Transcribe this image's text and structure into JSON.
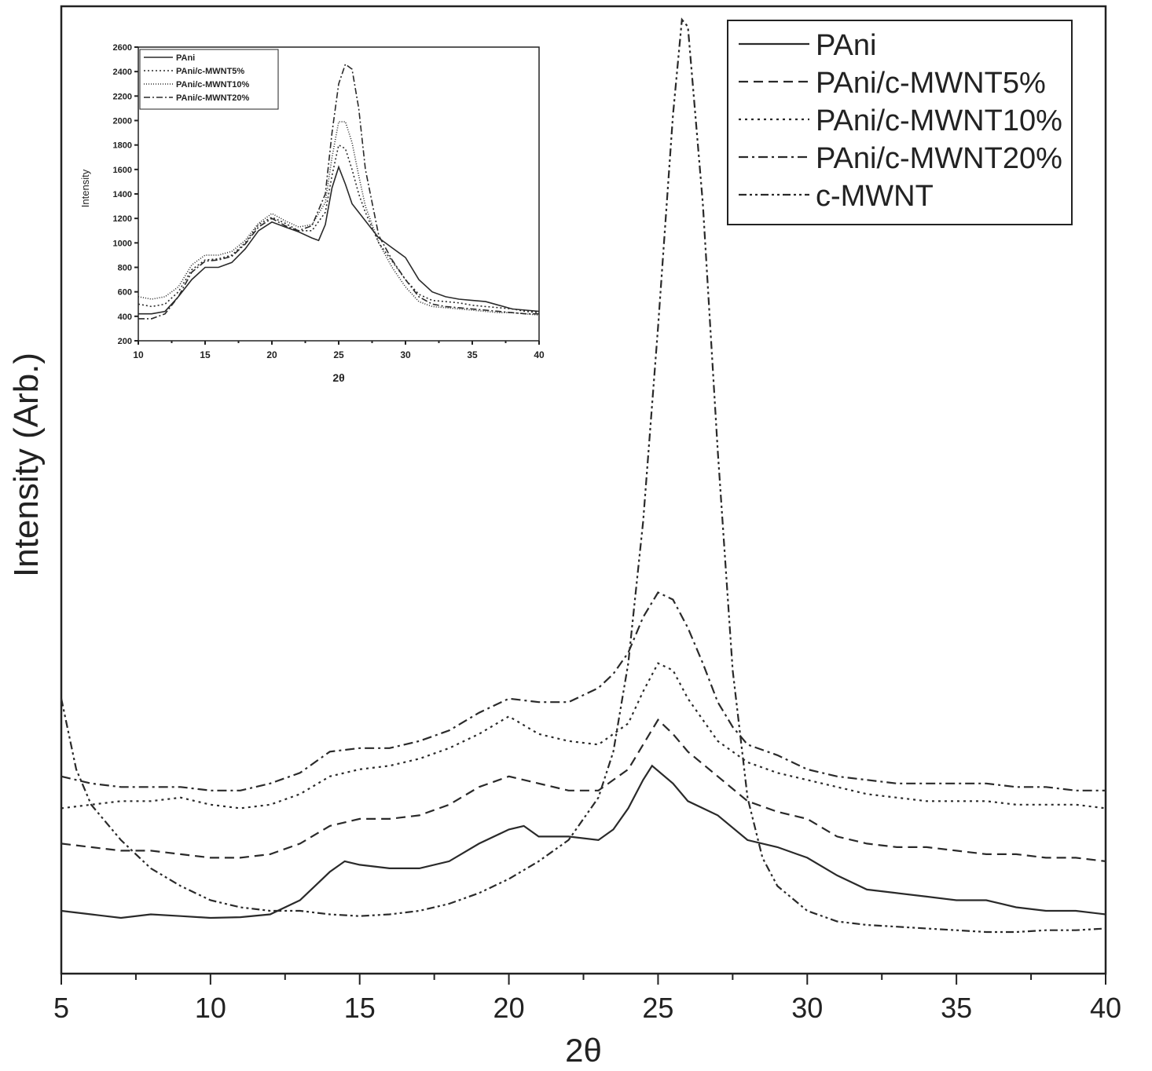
{
  "chart_data": [
    {
      "type": "line",
      "title": "",
      "xlabel": "2θ",
      "ylabel": "Intensity (Arb.)",
      "xlim": [
        5,
        40
      ],
      "x_ticks": [
        "5",
        "10",
        "15",
        "20",
        "25",
        "30",
        "35",
        "40"
      ],
      "y_ticks": [],
      "legend_position": "top-right",
      "series": [
        {
          "name": "PAni",
          "dash": "solid",
          "x": [
            5,
            6,
            7,
            8,
            9,
            10,
            11,
            12,
            13,
            13.5,
            14,
            14.5,
            15,
            16,
            17,
            18,
            19,
            20,
            20.5,
            21,
            22,
            23,
            23.5,
            24,
            24.5,
            24.8,
            25.5,
            26,
            27,
            28,
            29,
            30,
            31,
            32,
            33,
            34,
            35,
            36,
            37,
            38,
            39,
            40
          ],
          "y": [
            0.1,
            0.09,
            0.08,
            0.09,
            0.085,
            0.08,
            0.082,
            0.09,
            0.13,
            0.17,
            0.21,
            0.24,
            0.23,
            0.22,
            0.22,
            0.24,
            0.29,
            0.33,
            0.34,
            0.31,
            0.31,
            0.3,
            0.33,
            0.39,
            0.47,
            0.51,
            0.46,
            0.41,
            0.37,
            0.3,
            0.28,
            0.25,
            0.2,
            0.16,
            0.15,
            0.14,
            0.13,
            0.13,
            0.11,
            0.1,
            0.1,
            0.09
          ]
        },
        {
          "name": "PAni/c-MWNT5%",
          "dash": "dashed",
          "x": [
            5,
            6,
            7,
            8,
            9,
            10,
            11,
            12,
            13,
            14,
            15,
            16,
            17,
            18,
            19,
            20,
            21,
            22,
            23,
            24,
            24.5,
            25,
            25.5,
            26,
            27,
            28,
            29,
            30,
            31,
            32,
            33,
            34,
            35,
            36,
            37,
            38,
            39,
            40
          ],
          "y": [
            0.29,
            0.28,
            0.27,
            0.27,
            0.26,
            0.25,
            0.25,
            0.26,
            0.29,
            0.34,
            0.36,
            0.36,
            0.37,
            0.4,
            0.45,
            0.48,
            0.46,
            0.44,
            0.44,
            0.5,
            0.57,
            0.64,
            0.6,
            0.55,
            0.48,
            0.41,
            0.38,
            0.36,
            0.31,
            0.29,
            0.28,
            0.28,
            0.27,
            0.26,
            0.26,
            0.25,
            0.25,
            0.24
          ]
        },
        {
          "name": "PAni/c-MWNT10%",
          "dash": "dotted",
          "x": [
            5,
            6,
            7,
            8,
            9,
            10,
            11,
            12,
            13,
            14,
            15,
            16,
            17,
            18,
            19,
            20,
            21,
            22,
            23,
            24,
            24.5,
            25,
            25.5,
            26,
            27,
            28,
            29,
            30,
            31,
            32,
            33,
            34,
            35,
            36,
            37,
            38,
            39,
            40
          ],
          "y": [
            0.39,
            0.4,
            0.41,
            0.41,
            0.42,
            0.4,
            0.39,
            0.4,
            0.43,
            0.48,
            0.5,
            0.51,
            0.53,
            0.56,
            0.6,
            0.65,
            0.6,
            0.58,
            0.57,
            0.63,
            0.72,
            0.8,
            0.78,
            0.7,
            0.58,
            0.52,
            0.49,
            0.47,
            0.45,
            0.43,
            0.42,
            0.41,
            0.41,
            0.41,
            0.4,
            0.4,
            0.4,
            0.39
          ]
        },
        {
          "name": "PAni/c-MWNT20%",
          "dash": "dash-dot",
          "x": [
            5,
            6,
            7,
            8,
            9,
            10,
            11,
            12,
            13,
            14,
            15,
            16,
            17,
            18,
            19,
            20,
            21,
            22,
            23,
            23.5,
            24,
            24.5,
            25,
            25.5,
            26,
            26.5,
            27,
            27.5,
            28,
            29,
            30,
            31,
            32,
            33,
            34,
            35,
            36,
            37,
            38,
            39,
            40
          ],
          "y": [
            0.48,
            0.46,
            0.45,
            0.45,
            0.45,
            0.44,
            0.44,
            0.46,
            0.49,
            0.55,
            0.56,
            0.56,
            0.58,
            0.61,
            0.66,
            0.7,
            0.69,
            0.69,
            0.73,
            0.77,
            0.83,
            0.93,
            1.0,
            0.98,
            0.9,
            0.8,
            0.69,
            0.62,
            0.57,
            0.54,
            0.5,
            0.48,
            0.47,
            0.46,
            0.46,
            0.46,
            0.46,
            0.45,
            0.45,
            0.44,
            0.44
          ]
        },
        {
          "name": "c-MWNT",
          "dash": "dash-dot-dot",
          "x": [
            5,
            5.5,
            6,
            7,
            8,
            9,
            10,
            11,
            12,
            13,
            14,
            15,
            16,
            17,
            18,
            19,
            20,
            21,
            22,
            23,
            23.5,
            24,
            24.5,
            25,
            25.5,
            25.8,
            26,
            26.5,
            27,
            27.5,
            28,
            28.5,
            29,
            30,
            31,
            32,
            33,
            34,
            35,
            36,
            37,
            38,
            39,
            40
          ],
          "y": [
            0.7,
            0.5,
            0.4,
            0.3,
            0.22,
            0.17,
            0.13,
            0.11,
            0.1,
            0.1,
            0.09,
            0.085,
            0.09,
            0.1,
            0.12,
            0.15,
            0.19,
            0.24,
            0.3,
            0.42,
            0.55,
            0.8,
            1.2,
            1.75,
            2.35,
            2.62,
            2.6,
            2.1,
            1.4,
            0.78,
            0.42,
            0.25,
            0.17,
            0.1,
            0.07,
            0.06,
            0.055,
            0.05,
            0.045,
            0.04,
            0.04,
            0.045,
            0.045,
            0.05
          ]
        }
      ]
    },
    {
      "type": "line",
      "title": "",
      "xlabel": "2θ",
      "ylabel": "Intensity",
      "xlim": [
        10,
        40
      ],
      "ylim": [
        200,
        2600
      ],
      "x_ticks": [
        "10",
        "15",
        "20",
        "25",
        "30",
        "35",
        "40"
      ],
      "y_ticks": [
        "200",
        "400",
        "600",
        "800",
        "1000",
        "1200",
        "1400",
        "1600",
        "1800",
        "2000",
        "2200",
        "2400",
        "2600"
      ],
      "legend_position": "top-left",
      "series": [
        {
          "name": "PAni",
          "dash": "solid",
          "x": [
            10,
            11,
            12,
            13,
            14,
            15,
            16,
            17,
            18,
            19,
            20,
            21,
            22,
            23,
            23.5,
            24,
            24.5,
            25,
            25.5,
            26,
            27,
            28,
            29,
            30,
            31,
            32,
            33,
            34,
            35,
            36,
            37,
            38,
            39,
            40
          ],
          "y": [
            420,
            420,
            440,
            560,
            700,
            800,
            800,
            840,
            950,
            1100,
            1170,
            1130,
            1090,
            1040,
            1020,
            1150,
            1450,
            1620,
            1480,
            1320,
            1180,
            1040,
            960,
            880,
            700,
            600,
            560,
            540,
            530,
            520,
            490,
            460,
            450,
            440
          ]
        },
        {
          "name": "PAni/c-MWNT5%",
          "dash": "dotted",
          "x": [
            10,
            11,
            12,
            13,
            14,
            15,
            16,
            17,
            18,
            19,
            20,
            21,
            22,
            23,
            24,
            24.5,
            25,
            25.5,
            26,
            26.5,
            27,
            28,
            29,
            30,
            31,
            32,
            33,
            34,
            35,
            36,
            37,
            38,
            39,
            40
          ],
          "y": [
            500,
            480,
            500,
            600,
            780,
            860,
            870,
            900,
            1000,
            1150,
            1210,
            1160,
            1100,
            1100,
            1250,
            1550,
            1800,
            1770,
            1600,
            1400,
            1250,
            1000,
            850,
            700,
            580,
            530,
            520,
            510,
            490,
            480,
            470,
            460,
            440,
            430
          ]
        },
        {
          "name": "PAni/c-MWNT10%",
          "dash": "dotted-fine",
          "x": [
            10,
            11,
            12,
            13,
            14,
            15,
            16,
            17,
            18,
            19,
            20,
            21,
            22,
            23,
            24,
            24.5,
            25,
            25.5,
            26,
            26.5,
            27,
            28,
            29,
            30,
            31,
            32,
            33,
            34,
            35,
            36,
            37,
            38,
            39,
            40
          ],
          "y": [
            560,
            540,
            560,
            640,
            820,
            900,
            900,
            930,
            1020,
            1160,
            1240,
            1180,
            1130,
            1150,
            1330,
            1700,
            1990,
            1990,
            1820,
            1550,
            1300,
            1000,
            800,
            640,
            520,
            480,
            470,
            460,
            450,
            440,
            430,
            430,
            420,
            410
          ]
        },
        {
          "name": "PAni/c-MWNT20%",
          "dash": "dash-dot",
          "x": [
            10,
            11,
            12,
            13,
            14,
            15,
            16,
            17,
            18,
            19,
            20,
            21,
            22,
            23,
            24,
            24.5,
            25,
            25.5,
            26,
            26.5,
            27,
            28,
            29,
            30,
            31,
            32,
            33,
            34,
            35,
            36,
            37,
            38,
            39,
            40
          ],
          "y": [
            380,
            380,
            420,
            560,
            760,
            850,
            860,
            890,
            990,
            1130,
            1200,
            1140,
            1100,
            1140,
            1400,
            1900,
            2300,
            2460,
            2420,
            2100,
            1600,
            1060,
            860,
            700,
            560,
            500,
            480,
            470,
            460,
            450,
            440,
            430,
            420,
            420
          ]
        }
      ]
    }
  ]
}
